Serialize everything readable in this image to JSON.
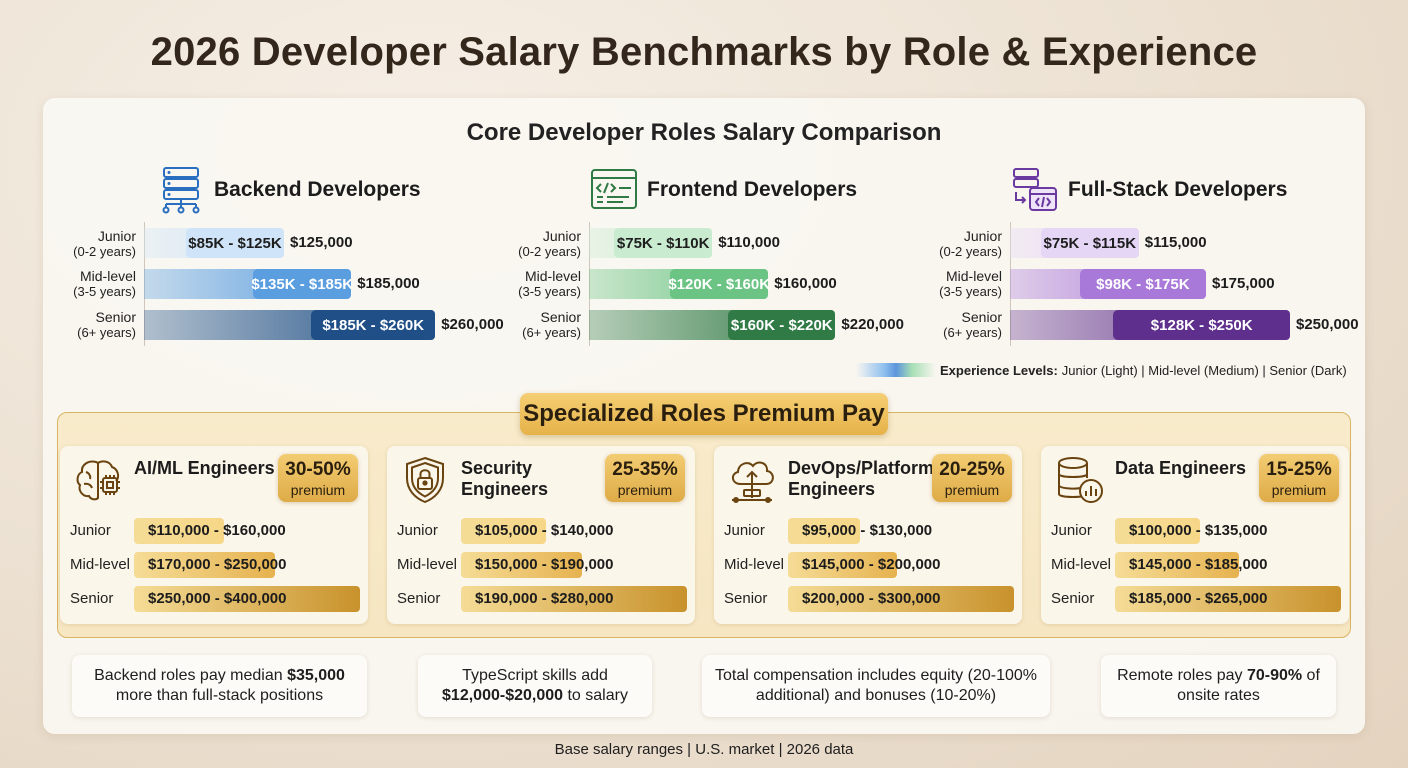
{
  "title": "2026 Developer Salary Benchmarks by Role & Experience",
  "core": {
    "title": "Core Developer Roles Salary Comparison",
    "levels": [
      {
        "name": "Junior",
        "years": "(0-2 years)"
      },
      {
        "name": "Mid-level",
        "years": "(3-5 years)"
      },
      {
        "name": "Senior",
        "years": "(6+ years)"
      }
    ],
    "roles": [
      {
        "name": "Backend Developers",
        "icon": "server-network-icon",
        "ranges": [
          "$85K - $125K",
          "$135K - $185K",
          "$185K - $260K"
        ],
        "values_text": [
          "$125,000",
          "$185,000",
          "$260,000"
        ],
        "colors": [
          "#cfe4f8",
          "#5a9ee0",
          "#1f4f86"
        ]
      },
      {
        "name": "Frontend Developers",
        "icon": "code-window-icon",
        "ranges": [
          "$75K - $110K",
          "$120K - $160K",
          "$160K - $220K"
        ],
        "values_text": [
          "$110,000",
          "$160,000",
          "$220,000"
        ],
        "colors": [
          "#c9ecd0",
          "#6bc483",
          "#2f7a45"
        ]
      },
      {
        "name": "Full-Stack Developers",
        "icon": "stack-code-icon",
        "ranges": [
          "$75K - $115K",
          "$98K - $175K",
          "$128K - $250K"
        ],
        "values_text": [
          "$115,000",
          "$175,000",
          "$250,000"
        ],
        "colors": [
          "#e6d6f6",
          "#a979d9",
          "#5e2f8c"
        ]
      }
    ],
    "legend": {
      "label": "Experience Levels:",
      "text": "Junior (Light) | Mid-level (Medium) | Senior (Dark)"
    }
  },
  "chart_data": {
    "type": "bar",
    "title": "Core Developer Roles Salary Comparison",
    "categories": [
      "Junior (0-2 years)",
      "Mid-level (3-5 years)",
      "Senior (6+ years)"
    ],
    "series": [
      {
        "name": "Backend Developers",
        "low": [
          85000,
          135000,
          185000
        ],
        "high": [
          125000,
          185000,
          260000
        ]
      },
      {
        "name": "Frontend Developers",
        "low": [
          75000,
          120000,
          160000
        ],
        "high": [
          110000,
          160000,
          220000
        ]
      },
      {
        "name": "Full-Stack Developers",
        "low": [
          75000,
          98000,
          128000
        ],
        "high": [
          115000,
          175000,
          250000
        ]
      }
    ],
    "xlim": [
      0,
      260000
    ]
  },
  "specialized": {
    "title": "Specialized Roles Premium Pay",
    "premium_word": "premium",
    "level_labels": [
      "Junior",
      "Mid-level",
      "Senior"
    ],
    "cards": [
      {
        "name": "AI/ML Engineers",
        "icon": "brain-chip-icon",
        "premium": "30-50%",
        "rows": [
          {
            "low": "$110,000",
            "high": "$160,000",
            "frac": 0.4
          },
          {
            "low": "$170,000",
            "high": "$250,000",
            "frac": 0.625
          },
          {
            "low": "$250,000",
            "high": "$400,000",
            "frac": 1.0
          }
        ]
      },
      {
        "name": "Security Engineers",
        "icon": "shield-lock-icon",
        "premium": "25-35%",
        "rows": [
          {
            "low": "$105,000",
            "high": "$140,000",
            "frac": 0.375
          },
          {
            "low": "$150,000",
            "high": "$190,000",
            "frac": 0.536
          },
          {
            "low": "$190,000",
            "high": "$280,000",
            "frac": 1.0
          }
        ]
      },
      {
        "name": "DevOps/Platform Engineers",
        "icon": "cloud-deploy-icon",
        "premium": "20-25%",
        "rows": [
          {
            "low": "$95,000",
            "high": "$130,000",
            "frac": 0.317
          },
          {
            "low": "$145,000",
            "high": "$200,000",
            "frac": 0.483
          },
          {
            "low": "$200,000",
            "high": "$300,000",
            "frac": 1.0
          }
        ]
      },
      {
        "name": "Data Engineers",
        "icon": "database-chart-icon",
        "premium": "15-25%",
        "rows": [
          {
            "low": "$100,000",
            "high": "$135,000",
            "frac": 0.377
          },
          {
            "low": "$145,000",
            "high": "$185,000",
            "frac": 0.547
          },
          {
            "low": "$185,000",
            "high": "$265,000",
            "frac": 1.0
          }
        ]
      }
    ]
  },
  "facts": [
    {
      "pre": "Backend roles pay median ",
      "bold": "$35,000",
      "post": " more than full-stack positions"
    },
    {
      "pre": "TypeScript skills add ",
      "bold": "$12,000-$20,000",
      "post": " to salary"
    },
    {
      "pre": "Total compensation includes equity (20-100% additional) and bonuses (10-20%)",
      "bold": "",
      "post": ""
    },
    {
      "pre": "Remote roles pay ",
      "bold": "70-90%",
      "post": " of onsite rates"
    }
  ],
  "footnote": "Base salary ranges | U.S. market | 2026 data"
}
